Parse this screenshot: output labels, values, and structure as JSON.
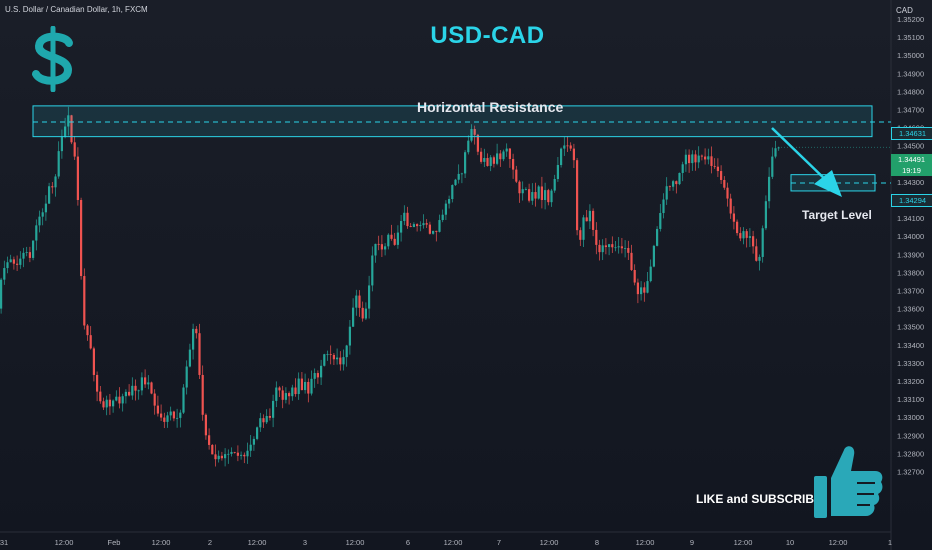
{
  "header": {
    "symbol_label": "U.S. Dollar / Canadian Dollar, 1h, FXCM",
    "currency": "CAD"
  },
  "annotations": {
    "title": "USD-CAD",
    "resistance_label": "Horizontal Resistance",
    "target_label": "Target Level",
    "cta_label": "LIKE and SUBSCRIBE",
    "icons": [
      "dollar-icon",
      "thumbs-up-icon",
      "arrow-down-right-icon"
    ]
  },
  "price_tags": {
    "resistance": "1.34631",
    "current_price": "1.34491",
    "countdown": "19:19",
    "target": "1.34294"
  },
  "colors": {
    "up": "#26a69a",
    "down": "#ef5350",
    "accent": "#2bd4e8",
    "background": "#131722"
  },
  "chart_data": {
    "type": "candlestick",
    "title": "USD-CAD",
    "interval": "1h",
    "ylim": [
      1.3265,
      1.3525
    ],
    "y_ticks": [
      "1.35200",
      "1.35100",
      "1.35000",
      "1.34900",
      "1.34800",
      "1.34700",
      "1.34600",
      "1.34500",
      "1.34400",
      "1.34300",
      "1.34200",
      "1.34100",
      "1.34000",
      "1.33900",
      "1.33800",
      "1.33700",
      "1.33600",
      "1.33500",
      "1.33400",
      "1.33300",
      "1.33200",
      "1.33100",
      "1.33000",
      "1.32900",
      "1.32800",
      "1.32700"
    ],
    "x_ticks": [
      "31",
      "12:00",
      "Feb",
      "12:00",
      "2",
      "12:00",
      "3",
      "12:00",
      "6",
      "12:00",
      "7",
      "12:00",
      "8",
      "12:00",
      "9",
      "12:00",
      "10",
      "12:00",
      "1"
    ],
    "resistance_zone": [
      1.3455,
      1.3472
    ],
    "resistance_level": 1.34631,
    "target_level": 1.34294,
    "target_box": [
      1.3425,
      1.3434
    ],
    "last_price": 1.34491,
    "path": [
      [
        0,
        1.336
      ],
      [
        4,
        1.338
      ],
      [
        8,
        1.3384
      ],
      [
        12,
        1.3388
      ],
      [
        15,
        1.3385
      ],
      [
        20,
        1.3384
      ],
      [
        24,
        1.339
      ],
      [
        28,
        1.3392
      ],
      [
        32,
        1.3388
      ],
      [
        36,
        1.34
      ],
      [
        40,
        1.341
      ],
      [
        44,
        1.3412
      ],
      [
        48,
        1.3418
      ],
      [
        52,
        1.343
      ],
      [
        56,
        1.3425
      ],
      [
        60,
        1.3445
      ],
      [
        64,
        1.3455
      ],
      [
        68,
        1.3462
      ],
      [
        71,
        1.3468
      ],
      [
        72,
        1.3454
      ],
      [
        75,
        1.345
      ],
      [
        78,
        1.344
      ],
      [
        80,
        1.342
      ],
      [
        82,
        1.339
      ],
      [
        85,
        1.336
      ],
      [
        88,
        1.334
      ],
      [
        91,
        1.335
      ],
      [
        94,
        1.333
      ],
      [
        97,
        1.332
      ],
      [
        100,
        1.3312
      ],
      [
        103,
        1.3308
      ],
      [
        106,
        1.3305
      ],
      [
        109,
        1.331
      ],
      [
        112,
        1.3306
      ],
      [
        115,
        1.3309
      ],
      [
        118,
        1.3312
      ],
      [
        121,
        1.3307
      ],
      [
        124,
        1.331
      ],
      [
        127,
        1.3316
      ],
      [
        130,
        1.331
      ],
      [
        133,
        1.3315
      ],
      [
        136,
        1.332
      ],
      [
        139,
        1.331
      ],
      [
        142,
        1.3318
      ],
      [
        145,
        1.3324
      ],
      [
        148,
        1.3316
      ],
      [
        151,
        1.332
      ],
      [
        154,
        1.3312
      ],
      [
        157,
        1.3306
      ],
      [
        160,
        1.3302
      ],
      [
        163,
        1.33
      ],
      [
        166,
        1.3297
      ],
      [
        169,
        1.33
      ],
      [
        172,
        1.3305
      ],
      [
        175,
        1.3298
      ],
      [
        178,
        1.3302
      ],
      [
        181,
        1.3296
      ],
      [
        184,
        1.331
      ],
      [
        187,
        1.3322
      ],
      [
        190,
        1.3332
      ],
      [
        193,
        1.334
      ],
      [
        196,
        1.3352
      ],
      [
        199,
        1.3345
      ],
      [
        202,
        1.332
      ],
      [
        205,
        1.33
      ],
      [
        208,
        1.329
      ],
      [
        211,
        1.3285
      ],
      [
        214,
        1.328
      ],
      [
        217,
        1.3276
      ],
      [
        220,
        1.328
      ],
      [
        223,
        1.3275
      ],
      [
        226,
        1.3282
      ],
      [
        229,
        1.3276
      ],
      [
        232,
        1.3284
      ],
      [
        235,
        1.3278
      ],
      [
        238,
        1.3282
      ],
      [
        241,
        1.3277
      ],
      [
        244,
        1.328
      ],
      [
        247,
        1.3278
      ],
      [
        250,
        1.3282
      ],
      [
        253,
        1.3285
      ],
      [
        256,
        1.3288
      ],
      [
        259,
        1.3294
      ],
      [
        262,
        1.33
      ],
      [
        265,
        1.3296
      ],
      [
        268,
        1.3302
      ],
      [
        271,
        1.3297
      ],
      [
        274,
        1.3305
      ],
      [
        277,
        1.3315
      ],
      [
        280,
        1.3318
      ],
      [
        283,
        1.3312
      ],
      [
        286,
        1.3308
      ],
      [
        289,
        1.3316
      ],
      [
        292,
        1.331
      ],
      [
        295,
        1.3318
      ],
      [
        298,
        1.3312
      ],
      [
        301,
        1.3322
      ],
      [
        304,
        1.3315
      ],
      [
        307,
        1.332
      ],
      [
        310,
        1.3312
      ],
      [
        313,
        1.332
      ],
      [
        316,
        1.3326
      ],
      [
        319,
        1.332
      ],
      [
        322,
        1.3326
      ],
      [
        325,
        1.3332
      ],
      [
        328,
        1.3338
      ],
      [
        331,
        1.3332
      ],
      [
        334,
        1.3336
      ],
      [
        337,
        1.333
      ],
      [
        340,
        1.3334
      ],
      [
        343,
        1.3328
      ],
      [
        346,
        1.3334
      ],
      [
        349,
        1.334
      ],
      [
        352,
        1.335
      ],
      [
        355,
        1.336
      ],
      [
        358,
        1.3368
      ],
      [
        361,
        1.3362
      ],
      [
        364,
        1.3354
      ],
      [
        367,
        1.3356
      ],
      [
        370,
        1.3368
      ],
      [
        373,
        1.338
      ],
      [
        376,
        1.34
      ],
      [
        379,
        1.3392
      ],
      [
        382,
        1.3398
      ],
      [
        385,
        1.339
      ],
      [
        388,
        1.3396
      ],
      [
        391,
        1.3402
      ],
      [
        394,
        1.3398
      ],
      [
        397,
        1.3395
      ],
      [
        400,
        1.3402
      ],
      [
        403,
        1.3408
      ],
      [
        406,
        1.3414
      ],
      [
        409,
        1.3406
      ],
      [
        412,
        1.3404
      ],
      [
        415,
        1.3408
      ],
      [
        418,
        1.3404
      ],
      [
        421,
        1.3408
      ],
      [
        424,
        1.3404
      ],
      [
        427,
        1.341
      ],
      [
        430,
        1.3404
      ],
      [
        433,
        1.34
      ],
      [
        436,
        1.3404
      ],
      [
        439,
        1.3402
      ],
      [
        442,
        1.341
      ],
      [
        445,
        1.3412
      ],
      [
        448,
        1.3418
      ],
      [
        451,
        1.342
      ],
      [
        454,
        1.3428
      ],
      [
        457,
        1.343
      ],
      [
        460,
        1.3436
      ],
      [
        463,
        1.343
      ],
      [
        466,
        1.3444
      ],
      [
        469,
        1.345
      ],
      [
        472,
        1.3456
      ],
      [
        475,
        1.3462
      ],
      [
        478,
        1.3452
      ],
      [
        481,
        1.3444
      ],
      [
        484,
        1.344
      ],
      [
        487,
        1.3444
      ],
      [
        490,
        1.3438
      ],
      [
        493,
        1.3444
      ],
      [
        496,
        1.344
      ],
      [
        499,
        1.3446
      ],
      [
        502,
        1.3442
      ],
      [
        505,
        1.3446
      ],
      [
        508,
        1.345
      ],
      [
        511,
        1.3444
      ],
      [
        514,
        1.344
      ],
      [
        517,
        1.3432
      ],
      [
        520,
        1.3428
      ],
      [
        523,
        1.342
      ],
      [
        526,
        1.343
      ],
      [
        529,
        1.3424
      ],
      [
        532,
        1.3418
      ],
      [
        535,
        1.3426
      ],
      [
        538,
        1.342
      ],
      [
        541,
        1.3428
      ],
      [
        544,
        1.342
      ],
      [
        547,
        1.3426
      ],
      [
        550,
        1.3418
      ],
      [
        553,
        1.3424
      ],
      [
        556,
        1.343
      ],
      [
        559,
        1.3436
      ],
      [
        562,
        1.3446
      ],
      [
        565,
        1.3452
      ],
      [
        568,
        1.3448
      ],
      [
        571,
        1.3452
      ],
      [
        574,
        1.3446
      ],
      [
        577,
        1.344
      ],
      [
        580,
        1.339
      ],
      [
        583,
        1.34
      ],
      [
        586,
        1.3412
      ],
      [
        589,
        1.3408
      ],
      [
        592,
        1.3414
      ],
      [
        595,
        1.3404
      ],
      [
        598,
        1.3396
      ],
      [
        601,
        1.339
      ],
      [
        604,
        1.3396
      ],
      [
        607,
        1.3392
      ],
      [
        610,
        1.3398
      ],
      [
        613,
        1.3392
      ],
      [
        616,
        1.3396
      ],
      [
        619,
        1.3392
      ],
      [
        622,
        1.3396
      ],
      [
        625,
        1.3392
      ],
      [
        628,
        1.3394
      ],
      [
        631,
        1.339
      ],
      [
        634,
        1.338
      ],
      [
        637,
        1.3374
      ],
      [
        640,
        1.3368
      ],
      [
        643,
        1.3372
      ],
      [
        646,
        1.3368
      ],
      [
        649,
        1.3374
      ],
      [
        652,
        1.338
      ],
      [
        655,
        1.3392
      ],
      [
        658,
        1.34
      ],
      [
        661,
        1.341
      ],
      [
        664,
        1.3416
      ],
      [
        667,
        1.3424
      ],
      [
        670,
        1.343
      ],
      [
        673,
        1.3426
      ],
      [
        676,
        1.3432
      ],
      [
        679,
        1.3428
      ],
      [
        682,
        1.3436
      ],
      [
        685,
        1.344
      ],
      [
        688,
        1.3445
      ],
      [
        691,
        1.344
      ],
      [
        694,
        1.3446
      ],
      [
        697,
        1.344
      ],
      [
        700,
        1.3444
      ],
      [
        703,
        1.3446
      ],
      [
        706,
        1.344
      ],
      [
        709,
        1.3446
      ],
      [
        712,
        1.3442
      ],
      [
        715,
        1.3436
      ],
      [
        718,
        1.344
      ],
      [
        721,
        1.3434
      ],
      [
        724,
        1.343
      ],
      [
        727,
        1.3426
      ],
      [
        730,
        1.342
      ],
      [
        733,
        1.3412
      ],
      [
        736,
        1.3408
      ],
      [
        739,
        1.3402
      ],
      [
        742,
        1.3398
      ],
      [
        745,
        1.3404
      ],
      [
        748,
        1.3398
      ],
      [
        751,
        1.3402
      ],
      [
        754,
        1.3396
      ],
      [
        757,
        1.3392
      ],
      [
        760,
        1.338
      ],
      [
        763,
        1.3396
      ],
      [
        766,
        1.341
      ],
      [
        769,
        1.3424
      ],
      [
        772,
        1.3436
      ],
      [
        775,
        1.3446
      ],
      [
        778,
        1.3449
      ]
    ]
  }
}
